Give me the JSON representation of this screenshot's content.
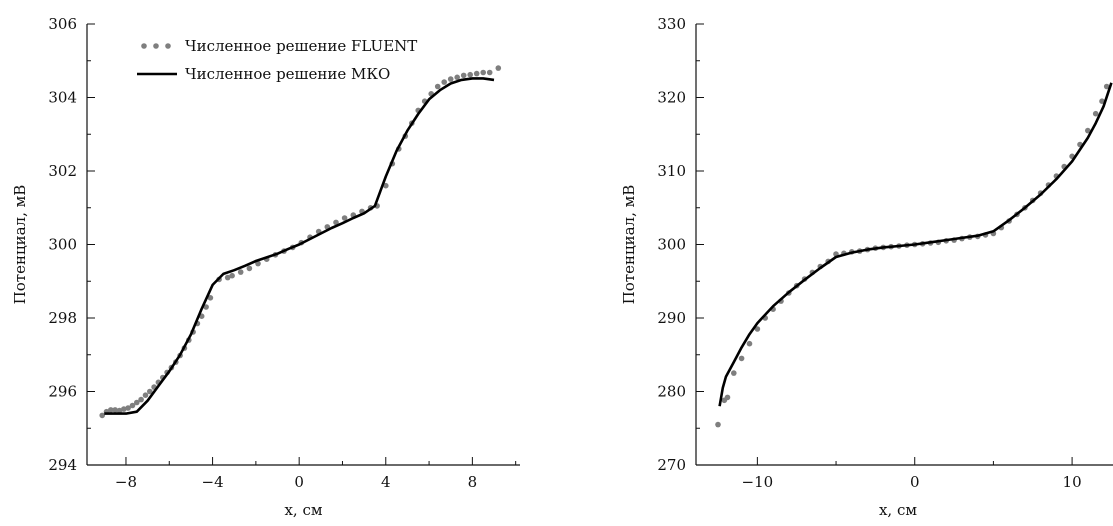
{
  "chart_data": [
    {
      "type": "scatter",
      "xlabel": "x, см",
      "ylabel": "Потенциал, мВ",
      "xlim": [
        -9.8,
        10.2
      ],
      "ylim": [
        294,
        306
      ],
      "xticks": [
        -8,
        -4,
        0,
        4,
        8
      ],
      "yticks": [
        294,
        296,
        298,
        300,
        302,
        304,
        306
      ],
      "xtick_labels": [
        "−8",
        "−4",
        "0",
        "4",
        "8"
      ],
      "ytick_labels": [
        "294",
        "296",
        "298",
        "300",
        "302",
        "304",
        "306"
      ],
      "legend_position": "top-left",
      "series": [
        {
          "name": "Численное решение FLUENT",
          "style": "dots",
          "color": "#7f7f7f",
          "x": [
            -9.1,
            -8.9,
            -8.7,
            -8.5,
            -8.3,
            -8.1,
            -7.9,
            -7.7,
            -7.5,
            -7.3,
            -7.1,
            -6.9,
            -6.7,
            -6.5,
            -6.3,
            -6.1,
            -5.9,
            -5.7,
            -5.5,
            -5.3,
            -5.1,
            -4.9,
            -4.7,
            -4.5,
            -4.3,
            -4.1,
            -3.7,
            -3.3,
            -3.1,
            -2.7,
            -2.3,
            -1.9,
            -1.5,
            -1.1,
            -0.7,
            -0.3,
            0.1,
            0.5,
            0.9,
            1.3,
            1.7,
            2.1,
            2.5,
            2.9,
            3.3,
            3.6,
            4.0,
            4.3,
            4.6,
            4.9,
            5.2,
            5.5,
            5.8,
            6.1,
            6.4,
            6.7,
            7.0,
            7.3,
            7.6,
            7.9,
            8.2,
            8.5,
            8.8,
            9.2
          ],
          "y": [
            295.35,
            295.45,
            295.5,
            295.5,
            295.48,
            295.52,
            295.55,
            295.62,
            295.7,
            295.78,
            295.9,
            296.0,
            296.12,
            296.25,
            296.38,
            296.52,
            296.65,
            296.8,
            296.98,
            297.18,
            297.4,
            297.62,
            297.85,
            298.05,
            298.3,
            298.55,
            299.05,
            299.1,
            299.15,
            299.25,
            299.35,
            299.48,
            299.6,
            299.72,
            299.82,
            299.92,
            300.05,
            300.2,
            300.35,
            300.48,
            300.6,
            300.72,
            300.8,
            300.9,
            301.0,
            301.05,
            301.6,
            302.2,
            302.6,
            302.95,
            303.3,
            303.65,
            303.9,
            304.1,
            304.3,
            304.42,
            304.5,
            304.55,
            304.6,
            304.62,
            304.65,
            304.68,
            304.68,
            304.8
          ]
        },
        {
          "name": "Численное решение МКО",
          "style": "line",
          "color": "#000000",
          "x": [
            -9.0,
            -8.5,
            -8.0,
            -7.5,
            -7.0,
            -6.5,
            -6.0,
            -5.5,
            -5.0,
            -4.5,
            -4.0,
            -3.5,
            -3.0,
            -2.5,
            -2.0,
            -1.5,
            -1.0,
            -0.5,
            0.0,
            0.5,
            1.0,
            1.5,
            2.0,
            2.5,
            3.0,
            3.5,
            4.0,
            4.5,
            5.0,
            5.5,
            6.0,
            6.5,
            7.0,
            7.5,
            8.0,
            8.5,
            9.0
          ],
          "y": [
            295.4,
            295.4,
            295.4,
            295.45,
            295.75,
            296.15,
            296.55,
            297.0,
            297.55,
            298.25,
            298.9,
            299.2,
            299.3,
            299.42,
            299.55,
            299.65,
            299.75,
            299.88,
            300.0,
            300.15,
            300.3,
            300.45,
            300.58,
            300.72,
            300.85,
            301.05,
            301.85,
            302.55,
            303.1,
            303.55,
            303.95,
            304.2,
            304.38,
            304.48,
            304.52,
            304.52,
            304.48
          ]
        }
      ]
    },
    {
      "type": "scatter",
      "xlabel": "x, см",
      "ylabel": "Потенциал, мВ",
      "xlim": [
        -13.9,
        12.6
      ],
      "ylim": [
        270,
        330
      ],
      "xticks": [
        -10,
        0,
        10
      ],
      "yticks": [
        270,
        280,
        290,
        300,
        310,
        320,
        330
      ],
      "xtick_labels": [
        "−10",
        "0",
        "10"
      ],
      "ytick_labels": [
        "270",
        "280",
        "290",
        "300",
        "310",
        "320",
        "330"
      ],
      "series": [
        {
          "name": "Численное решение FLUENT",
          "style": "dots",
          "color": "#7f7f7f",
          "x": [
            -12.5,
            -12.1,
            -11.9,
            -11.5,
            -11.0,
            -10.5,
            -10.0,
            -9.5,
            -9.0,
            -8.5,
            -8.0,
            -7.5,
            -7.0,
            -6.5,
            -6.0,
            -5.5,
            -5.0,
            -4.5,
            -4.0,
            -3.5,
            -3.0,
            -2.5,
            -2.0,
            -1.5,
            -1.0,
            -0.5,
            0.0,
            0.5,
            1.0,
            1.5,
            2.0,
            2.5,
            3.0,
            3.5,
            4.0,
            4.5,
            5.0,
            5.5,
            6.0,
            6.5,
            7.0,
            7.5,
            8.0,
            8.5,
            9.0,
            9.5,
            10.0,
            10.5,
            11.0,
            11.5,
            11.9,
            12.2
          ],
          "y": [
            275.5,
            278.8,
            279.2,
            282.5,
            284.5,
            286.5,
            288.5,
            290.0,
            291.2,
            292.3,
            293.4,
            294.4,
            295.3,
            296.2,
            297.0,
            297.7,
            298.7,
            298.8,
            299.0,
            299.1,
            299.3,
            299.5,
            299.6,
            299.7,
            299.8,
            299.9,
            300.0,
            300.1,
            300.2,
            300.3,
            300.5,
            300.6,
            300.8,
            301.0,
            301.1,
            301.3,
            301.5,
            302.3,
            303.2,
            304.1,
            305.0,
            306.0,
            307.0,
            308.1,
            309.3,
            310.6,
            312.0,
            313.6,
            315.5,
            317.8,
            319.5,
            321.5
          ]
        },
        {
          "name": "Численное решение МКО",
          "style": "line",
          "color": "#000000",
          "x": [
            -12.4,
            -12.2,
            -12.0,
            -11.5,
            -11.0,
            -10.5,
            -10.0,
            -9.0,
            -8.0,
            -7.0,
            -6.0,
            -5.0,
            -4.0,
            -3.0,
            -2.0,
            -1.0,
            0.0,
            1.0,
            2.0,
            3.0,
            4.0,
            5.0,
            6.0,
            7.0,
            8.0,
            9.0,
            10.0,
            11.0,
            11.5,
            12.0,
            12.5
          ],
          "y": [
            278.0,
            280.5,
            282.0,
            284.0,
            286.0,
            287.8,
            289.3,
            291.6,
            293.5,
            295.2,
            296.8,
            298.3,
            298.9,
            299.3,
            299.6,
            299.8,
            300.0,
            300.3,
            300.6,
            300.9,
            301.2,
            301.8,
            303.3,
            305.0,
            306.8,
            308.9,
            311.3,
            314.5,
            316.5,
            318.8,
            322.0
          ]
        }
      ]
    }
  ]
}
